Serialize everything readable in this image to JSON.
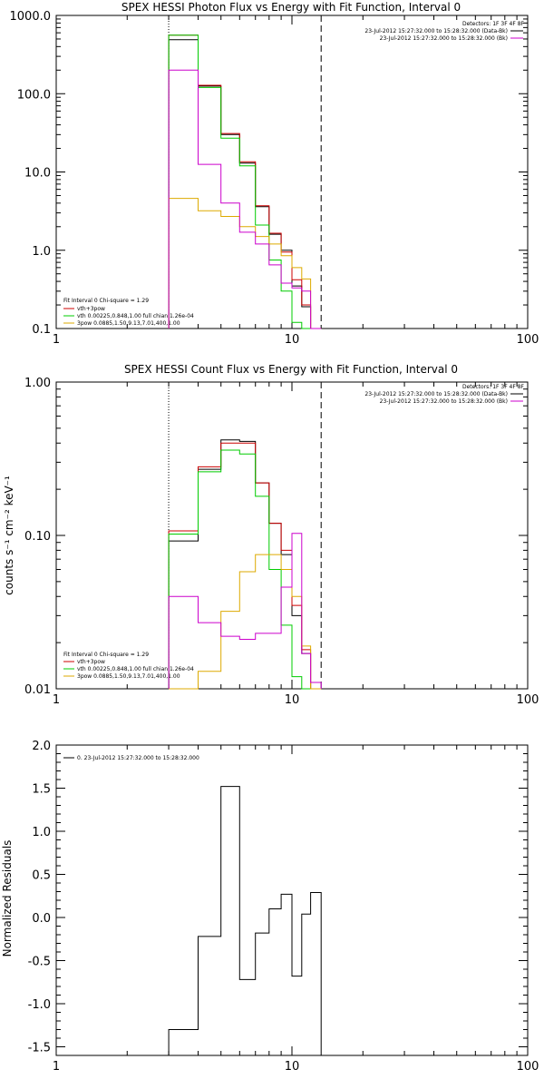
{
  "chart_data": [
    {
      "type": "line",
      "title": "SPEX HESSI Photon Flux vs Energy with Fit Function, Interval 0",
      "xlabel": "",
      "ylabel": "",
      "xscale": "log",
      "yscale": "log",
      "xlim": [
        1,
        100
      ],
      "ylim": [
        0.1,
        1000
      ],
      "xticks": [
        "1",
        "10",
        "100"
      ],
      "yticks": [
        "0.1",
        "1.0",
        "10.0",
        "100.0",
        "1000.0"
      ],
      "vlines": [
        {
          "x": 3.0,
          "style": "dotted"
        },
        {
          "x": 13.3,
          "style": "dashed"
        }
      ],
      "edges": [
        3.0,
        4.0,
        5.0,
        6.0,
        7.0,
        8.0,
        9.0,
        10.0,
        11.0,
        12.0,
        13.3
      ],
      "series": [
        {
          "name": "",
          "color": "#000000",
          "values": [
            490,
            125,
            30,
            13,
            3.6,
            1.6,
            1.0,
            0.35,
            0.19,
            0.1
          ]
        },
        {
          "name": "vth+3pow",
          "color": "#cc0000",
          "values": [
            560,
            128,
            31,
            13.5,
            3.7,
            1.65,
            0.95,
            0.42,
            0.2,
            0.1
          ]
        },
        {
          "name": "vth 0.00225,0.848,1.00 full chian 1.26e-04",
          "color": "#00cc00",
          "values": [
            560,
            120,
            27,
            12,
            2.1,
            0.75,
            0.3,
            0.12,
            0.1,
            0.1
          ]
        },
        {
          "name": "3pow 0.0885,1.50,9.13,7.01,400,1.00",
          "color": "#ddaa00",
          "values": [
            4.6,
            3.2,
            2.7,
            2.0,
            1.5,
            1.2,
            0.85,
            0.6,
            0.43,
            0.1
          ]
        },
        {
          "name": "",
          "color": "#cc00cc",
          "values": [
            200,
            12.5,
            4.0,
            1.7,
            1.2,
            0.65,
            0.38,
            0.33,
            0.3,
            0.1
          ]
        }
      ],
      "legend": {
        "header": "Detectors: 1F 3F 4F 8F",
        "lines": [
          "23-Jul-2012 15:27:32.000 to 15:28:32.000 (Data-Bk)",
          "23-Jul-2012 15:27:32.000 to 15:28:32.000 (Bk)"
        ],
        "fit_header": "Fit Interval 0   Chi-square = 1.29"
      }
    },
    {
      "type": "line",
      "title": "SPEX HESSI Count Flux vs Energy with Fit Function, Interval 0",
      "xlabel": "",
      "ylabel": "counts s⁻¹ cm⁻² keV⁻¹",
      "xscale": "log",
      "yscale": "log",
      "xlim": [
        1,
        100
      ],
      "ylim": [
        0.01,
        1.0
      ],
      "xticks": [
        "1",
        "10",
        "100"
      ],
      "yticks": [
        "0.01",
        "0.10",
        "1.00"
      ],
      "vlines": [
        {
          "x": 3.0,
          "style": "dotted"
        },
        {
          "x": 13.3,
          "style": "dashed"
        }
      ],
      "edges": [
        3.0,
        4.0,
        5.0,
        6.0,
        7.0,
        8.0,
        9.0,
        10.0,
        11.0,
        12.0,
        13.3
      ],
      "series": [
        {
          "name": "",
          "color": "#000000",
          "values": [
            0.092,
            0.27,
            0.42,
            0.41,
            0.22,
            0.12,
            0.075,
            0.03,
            0.017,
            0.01
          ]
        },
        {
          "name": "vth+3pow",
          "color": "#cc0000",
          "values": [
            0.107,
            0.28,
            0.4,
            0.4,
            0.22,
            0.12,
            0.08,
            0.035,
            0.018,
            0.01
          ]
        },
        {
          "name": "vth 0.00225,0.848,1.00 full chian 1.26e-04",
          "color": "#00cc00",
          "values": [
            0.102,
            0.26,
            0.36,
            0.34,
            0.18,
            0.06,
            0.026,
            0.012,
            0.01,
            0.01
          ]
        },
        {
          "name": "3pow 0.0885,1.50,9.13,7.01,400,1.00",
          "color": "#ddaa00",
          "values": [
            0.0085,
            0.013,
            0.032,
            0.058,
            0.075,
            0.075,
            0.06,
            0.04,
            0.019,
            0.01
          ]
        },
        {
          "name": "",
          "color": "#cc00cc",
          "values": [
            0.04,
            0.027,
            0.022,
            0.021,
            0.023,
            0.023,
            0.046,
            0.103,
            0.017,
            0.011
          ]
        }
      ],
      "legend": {
        "header": "Detectors: 1F 3F 4F 8F",
        "lines": [
          "23-Jul-2012 15:27:32.000 to 15:28:32.000 (Data-Bk)",
          "23-Jul-2012 15:27:32.000 to 15:28:32.000 (Bk)"
        ],
        "fit_header": "Fit Interval 0   Chi-square = 1.29"
      }
    },
    {
      "type": "line",
      "title": "",
      "xlabel": "",
      "ylabel": "Normalized Residuals",
      "xscale": "log",
      "yscale": "linear",
      "xlim": [
        1,
        100
      ],
      "ylim": [
        -1.6,
        2.0
      ],
      "xticks": [
        "1",
        "10",
        "100"
      ],
      "yticks": [
        "-1.5",
        "-1.0",
        "-0.5",
        "0.0",
        "0.5",
        "1.0",
        "1.5",
        "2.0"
      ],
      "edges": [
        3.0,
        4.0,
        5.0,
        6.0,
        7.0,
        8.0,
        9.0,
        10.0,
        11.0,
        12.0,
        13.3
      ],
      "series": [
        {
          "name": "0. 23-Jul-2012 15:27:32.000 to 15:28:32.000",
          "color": "#000000",
          "values": [
            -1.3,
            -0.22,
            1.52,
            -0.72,
            -0.18,
            0.1,
            0.27,
            -0.68,
            0.04,
            0.29
          ]
        }
      ],
      "legend": {
        "lines": [
          "0. 23-Jul-2012 15:27:32.000 to 15:28:32.000"
        ]
      }
    }
  ]
}
